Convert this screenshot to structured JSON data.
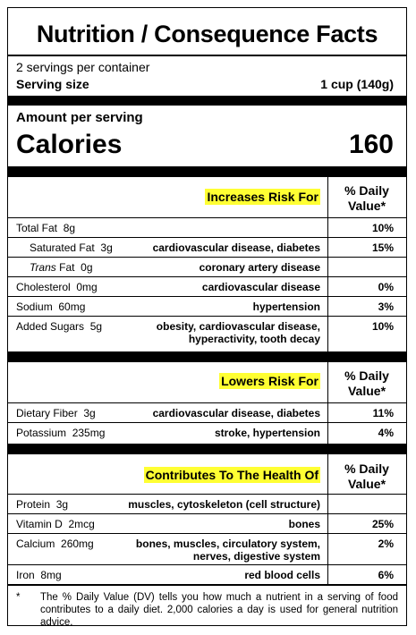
{
  "title": "Nutrition / Consequence Facts",
  "servings_per_container": "2 servings per container",
  "serving_size_label": "Serving size",
  "serving_size_value": "1 cup (140g)",
  "amount_per_serving": "Amount per serving",
  "calories_label": "Calories",
  "calories_value": "160",
  "dv_header": [
    "% Daily",
    "Value*"
  ],
  "sections": [
    {
      "heading": "Increases Risk For",
      "rows": [
        {
          "name": "Total Fat",
          "amount": "8g",
          "risk": "",
          "dv": "10%"
        },
        {
          "name": "Saturated Fat",
          "amount": "3g",
          "risk": "cardiovascular disease, diabetes",
          "dv": "15%"
        },
        {
          "name_italic": "Trans",
          "name": " Fat",
          "amount": "0g",
          "risk": "coronary artery disease",
          "dv": ""
        },
        {
          "name": "Cholesterol",
          "amount": "0mg",
          "risk": "cardiovascular disease",
          "dv": "0%"
        },
        {
          "name": "Sodium",
          "amount": "60mg",
          "risk": "hypertension",
          "dv": "3%"
        },
        {
          "name": "Added Sugars",
          "amount": "5g",
          "risk_lines": [
            "obesity, cardiovascular disease,",
            "hyperactivity, tooth decay"
          ],
          "dv": "10%"
        }
      ]
    },
    {
      "heading": "Lowers Risk For",
      "rows": [
        {
          "name": "Dietary Fiber",
          "amount": "3g",
          "risk": "cardiovascular disease, diabetes",
          "dv": "11%"
        },
        {
          "name": "Potassium",
          "amount": "235mg",
          "risk": "stroke, hypertension",
          "dv": "4%"
        }
      ]
    },
    {
      "heading": "Contributes To The Health Of",
      "rows": [
        {
          "name": "Protein",
          "amount": "3g",
          "risk": "muscles, cytoskeleton (cell structure)",
          "dv": ""
        },
        {
          "name": "Vitamin D",
          "amount": "2mcg",
          "risk": "bones",
          "dv": "25%"
        },
        {
          "name": "Calcium",
          "amount": "260mg",
          "risk_lines": [
            "bones, muscles, circulatory system,",
            "nerves, digestive system"
          ],
          "dv": "2%"
        },
        {
          "name": "Iron",
          "amount": "8mg",
          "risk": "red blood cells",
          "dv": "6%"
        }
      ]
    }
  ],
  "footnote_marker": "*",
  "footnote": "The % Daily Value (DV) tells you how much a nutrient in a serving of food contributes to a daily diet. 2,000 calories a day is used for general nutrition advice."
}
